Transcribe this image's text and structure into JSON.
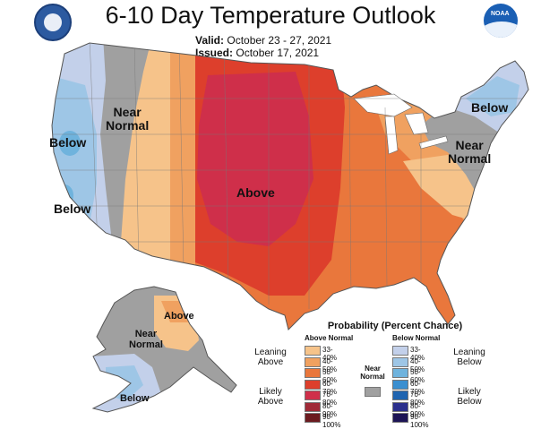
{
  "header": {
    "title": "6-10 Day Temperature Outlook",
    "valid_label": "Valid:",
    "valid_value": "October 23 - 27, 2021",
    "issued_label": "Issued:",
    "issued_value": "October 17, 2021",
    "left_logo": "department-of-commerce-seal",
    "right_logo": "noaa-logo",
    "right_logo_text": "NOAA"
  },
  "map_labels": {
    "below_west_1": "Below",
    "below_west_2": "Below",
    "near_normal_west_1": "Near",
    "near_normal_west_2": "Normal",
    "above_central": "Above",
    "below_northeast": "Below",
    "near_normal_east_1": "Near",
    "near_normal_east_2": "Normal",
    "alaska_above": "Above",
    "alaska_near_1": "Near",
    "alaska_near_2": "Normal",
    "alaska_below": "Below"
  },
  "colors": {
    "above_33_40": "#f6c38a",
    "above_40_50": "#f0a160",
    "above_50_60": "#e9773c",
    "above_60_70": "#dd3f2c",
    "above_70_80": "#cf2f4a",
    "above_80_90": "#a02a37",
    "above_90_100": "#6b1a1f",
    "near_normal": "#a0a0a0",
    "below_33_40": "#c3d0ea",
    "below_40_50": "#9ec6e6",
    "below_50_60": "#6fb3dd",
    "below_60_70": "#3b8fd0",
    "below_70_80": "#1f64b0",
    "below_80_90": "#2b2f8c",
    "below_90_100": "#1c1455"
  },
  "legend": {
    "title": "Probability (Percent Chance)",
    "above_header": "Above Normal",
    "below_header": "Below Normal",
    "above_items": [
      "33-40%",
      "40-50%",
      "50-60%",
      "60-70%",
      "70-80%",
      "80-90%",
      "90-100%"
    ],
    "below_items": [
      "33-40%",
      "40-50%",
      "50-60%",
      "60-70%",
      "70-80%",
      "80-90%",
      "90-100%"
    ],
    "leaning_above_1": "Leaning",
    "leaning_above_2": "Above",
    "likely_above_1": "Likely",
    "likely_above_2": "Above",
    "leaning_below_1": "Leaning",
    "leaning_below_2": "Below",
    "likely_below_1": "Likely",
    "likely_below_2": "Below",
    "near_normal_1": "Near",
    "near_normal_2": "Normal"
  }
}
